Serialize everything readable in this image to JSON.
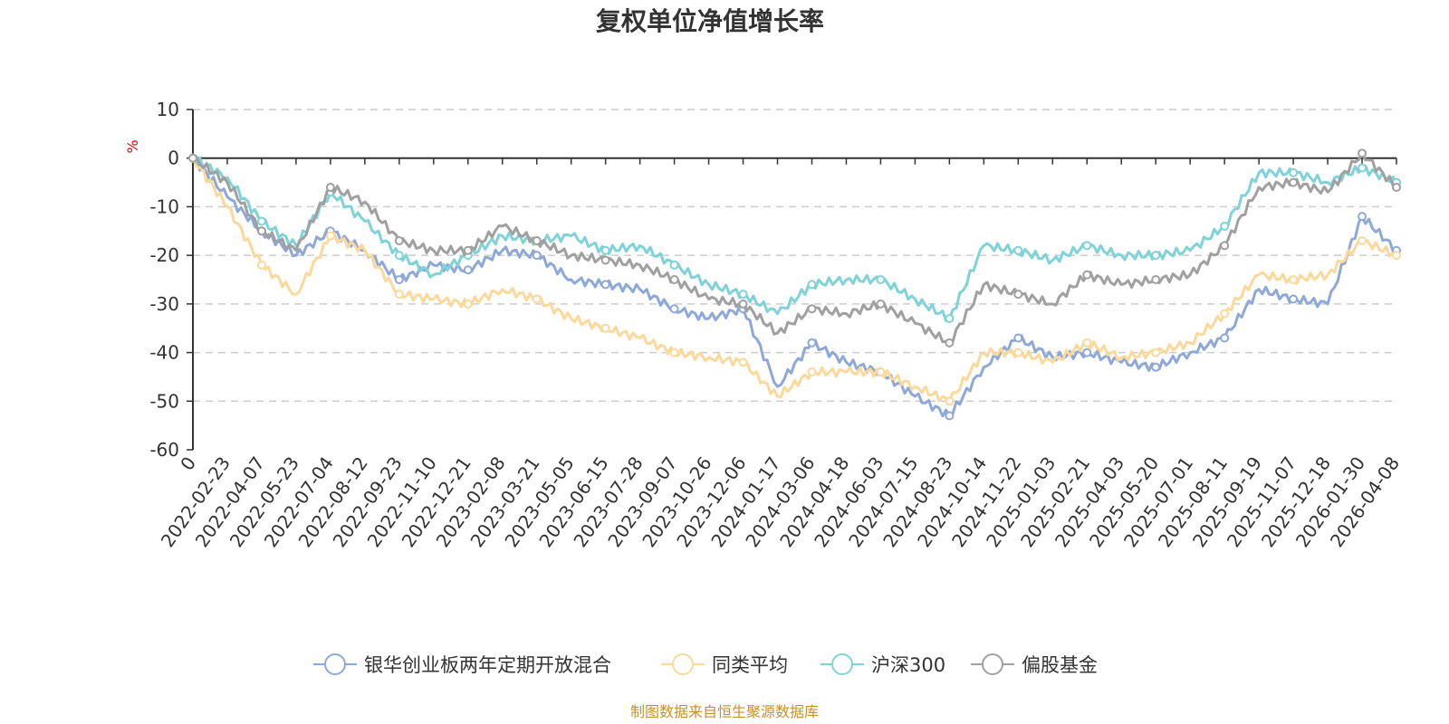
{
  "chart_data": {
    "type": "line",
    "title": "复权单位净值增长率",
    "ylabel": "%",
    "ylim": [
      -60,
      10
    ],
    "yticks": [
      10,
      0,
      -10,
      -20,
      -30,
      -40,
      -50,
      -60
    ],
    "categories": [
      "0",
      "2022-02-23",
      "2022-04-07",
      "2022-05-23",
      "2022-07-04",
      "2022-08-12",
      "2022-09-23",
      "2022-11-10",
      "2022-12-21",
      "2023-02-08",
      "2023-03-21",
      "2023-05-05",
      "2023-06-15",
      "2023-07-28",
      "2023-09-07",
      "2023-10-26",
      "2023-12-06",
      "2024-01-17",
      "2024-03-06",
      "2024-04-18",
      "2024-06-03",
      "2024-07-15",
      "2024-08-23",
      "2024-10-14",
      "2024-11-22",
      "2025-01-03",
      "2025-02-21",
      "2025-04-03",
      "2025-05-20",
      "2025-07-01",
      "2025-08-11",
      "2025-09-19",
      "2025-11-07",
      "2025-12-18",
      "2026-01-30",
      "2026-04-08"
    ],
    "grid": true,
    "legend_position": "bottom",
    "series": [
      {
        "name": "银华创业板两年定期开放混合",
        "color": "#8ea8d8",
        "values": [
          0,
          -8,
          -15,
          -20,
          -15,
          -19,
          -25,
          -22,
          -23,
          -19,
          -20,
          -25,
          -26,
          -27,
          -31,
          -33,
          -31,
          -47,
          -38,
          -42,
          -44,
          -49,
          -53,
          -43,
          -37,
          -41,
          -40,
          -42,
          -43,
          -40,
          -37,
          -27,
          -29,
          -30,
          -12,
          -19
        ]
      },
      {
        "name": "同类平均",
        "color": "#fcd89a",
        "values": [
          0,
          -10,
          -22,
          -28,
          -16,
          -19,
          -28,
          -29,
          -30,
          -27,
          -29,
          -33,
          -35,
          -37,
          -40,
          -41,
          -42,
          -49,
          -44,
          -44,
          -44,
          -47,
          -50,
          -40,
          -40,
          -42,
          -38,
          -41,
          -40,
          -38,
          -32,
          -24,
          -25,
          -24,
          -17,
          -20
        ]
      },
      {
        "name": "沪深300",
        "color": "#7fd3d8",
        "values": [
          0,
          -4,
          -13,
          -18,
          -7,
          -13,
          -20,
          -24,
          -20,
          -16,
          -17,
          -16,
          -19,
          -18,
          -22,
          -26,
          -28,
          -32,
          -26,
          -25,
          -25,
          -29,
          -33,
          -18,
          -19,
          -21,
          -18,
          -20,
          -20,
          -19,
          -14,
          -3,
          -3,
          -5,
          -2,
          -5
        ]
      },
      {
        "name": "偏股基金",
        "color": "#a0a0a0",
        "values": [
          0,
          -5,
          -15,
          -19,
          -6,
          -9,
          -17,
          -19,
          -19,
          -14,
          -17,
          -20,
          -21,
          -22,
          -25,
          -29,
          -30,
          -36,
          -31,
          -32,
          -30,
          -34,
          -38,
          -26,
          -28,
          -30,
          -24,
          -26,
          -25,
          -24,
          -18,
          -6,
          -5,
          -7,
          1,
          -6
        ]
      }
    ]
  },
  "source_note": "制图数据来自恒生聚源数据库"
}
